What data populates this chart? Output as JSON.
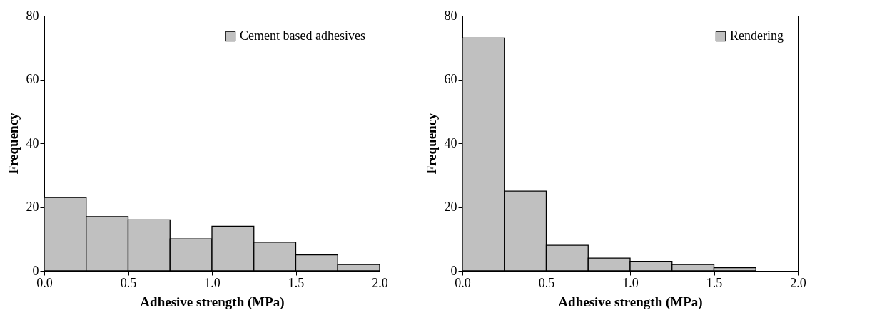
{
  "chart_data": [
    {
      "type": "histogram",
      "xlabel": "Adhesive strength (MPa)",
      "ylabel": "Frequency",
      "bins": [
        0,
        0.25,
        0.5,
        0.75,
        1.0,
        1.25,
        1.5,
        1.75,
        2.0
      ],
      "series": [
        {
          "name": "Cement based adhesives",
          "color": "#c0c0c0",
          "values": [
            23,
            17,
            16,
            10,
            14,
            9,
            5,
            2
          ]
        }
      ],
      "xlim": [
        0,
        2
      ],
      "xticks": [
        {
          "value": 0,
          "label": "0.0"
        },
        {
          "value": 0.5,
          "label": "0.5"
        },
        {
          "value": 1,
          "label": "1.0"
        },
        {
          "value": 1.5,
          "label": "1.5"
        },
        {
          "value": 2,
          "label": "2.0"
        }
      ],
      "ylim": [
        0,
        80
      ],
      "yticks": [
        0,
        20,
        40,
        60,
        80
      ],
      "grid": false,
      "legend": "top right"
    },
    {
      "type": "histogram",
      "xlabel": "Adhesive strength (MPa)",
      "ylabel": "Frequency",
      "bins": [
        0,
        0.25,
        0.5,
        0.75,
        1.0,
        1.25,
        1.5,
        1.75
      ],
      "series": [
        {
          "name": "Rendering",
          "color": "#c0c0c0",
          "values": [
            73,
            25,
            8,
            4,
            3,
            2,
            1
          ]
        }
      ],
      "xlim": [
        0,
        2
      ],
      "xticks": [
        {
          "value": 0,
          "label": "0.0"
        },
        {
          "value": 0.5,
          "label": "0.5"
        },
        {
          "value": 1,
          "label": "1.0"
        },
        {
          "value": 1.5,
          "label": "1.5"
        },
        {
          "value": 2,
          "label": "2.0"
        }
      ],
      "ylim": [
        0,
        80
      ],
      "yticks": [
        0,
        20,
        40,
        60,
        80
      ],
      "grid": false,
      "legend": "top right"
    }
  ]
}
